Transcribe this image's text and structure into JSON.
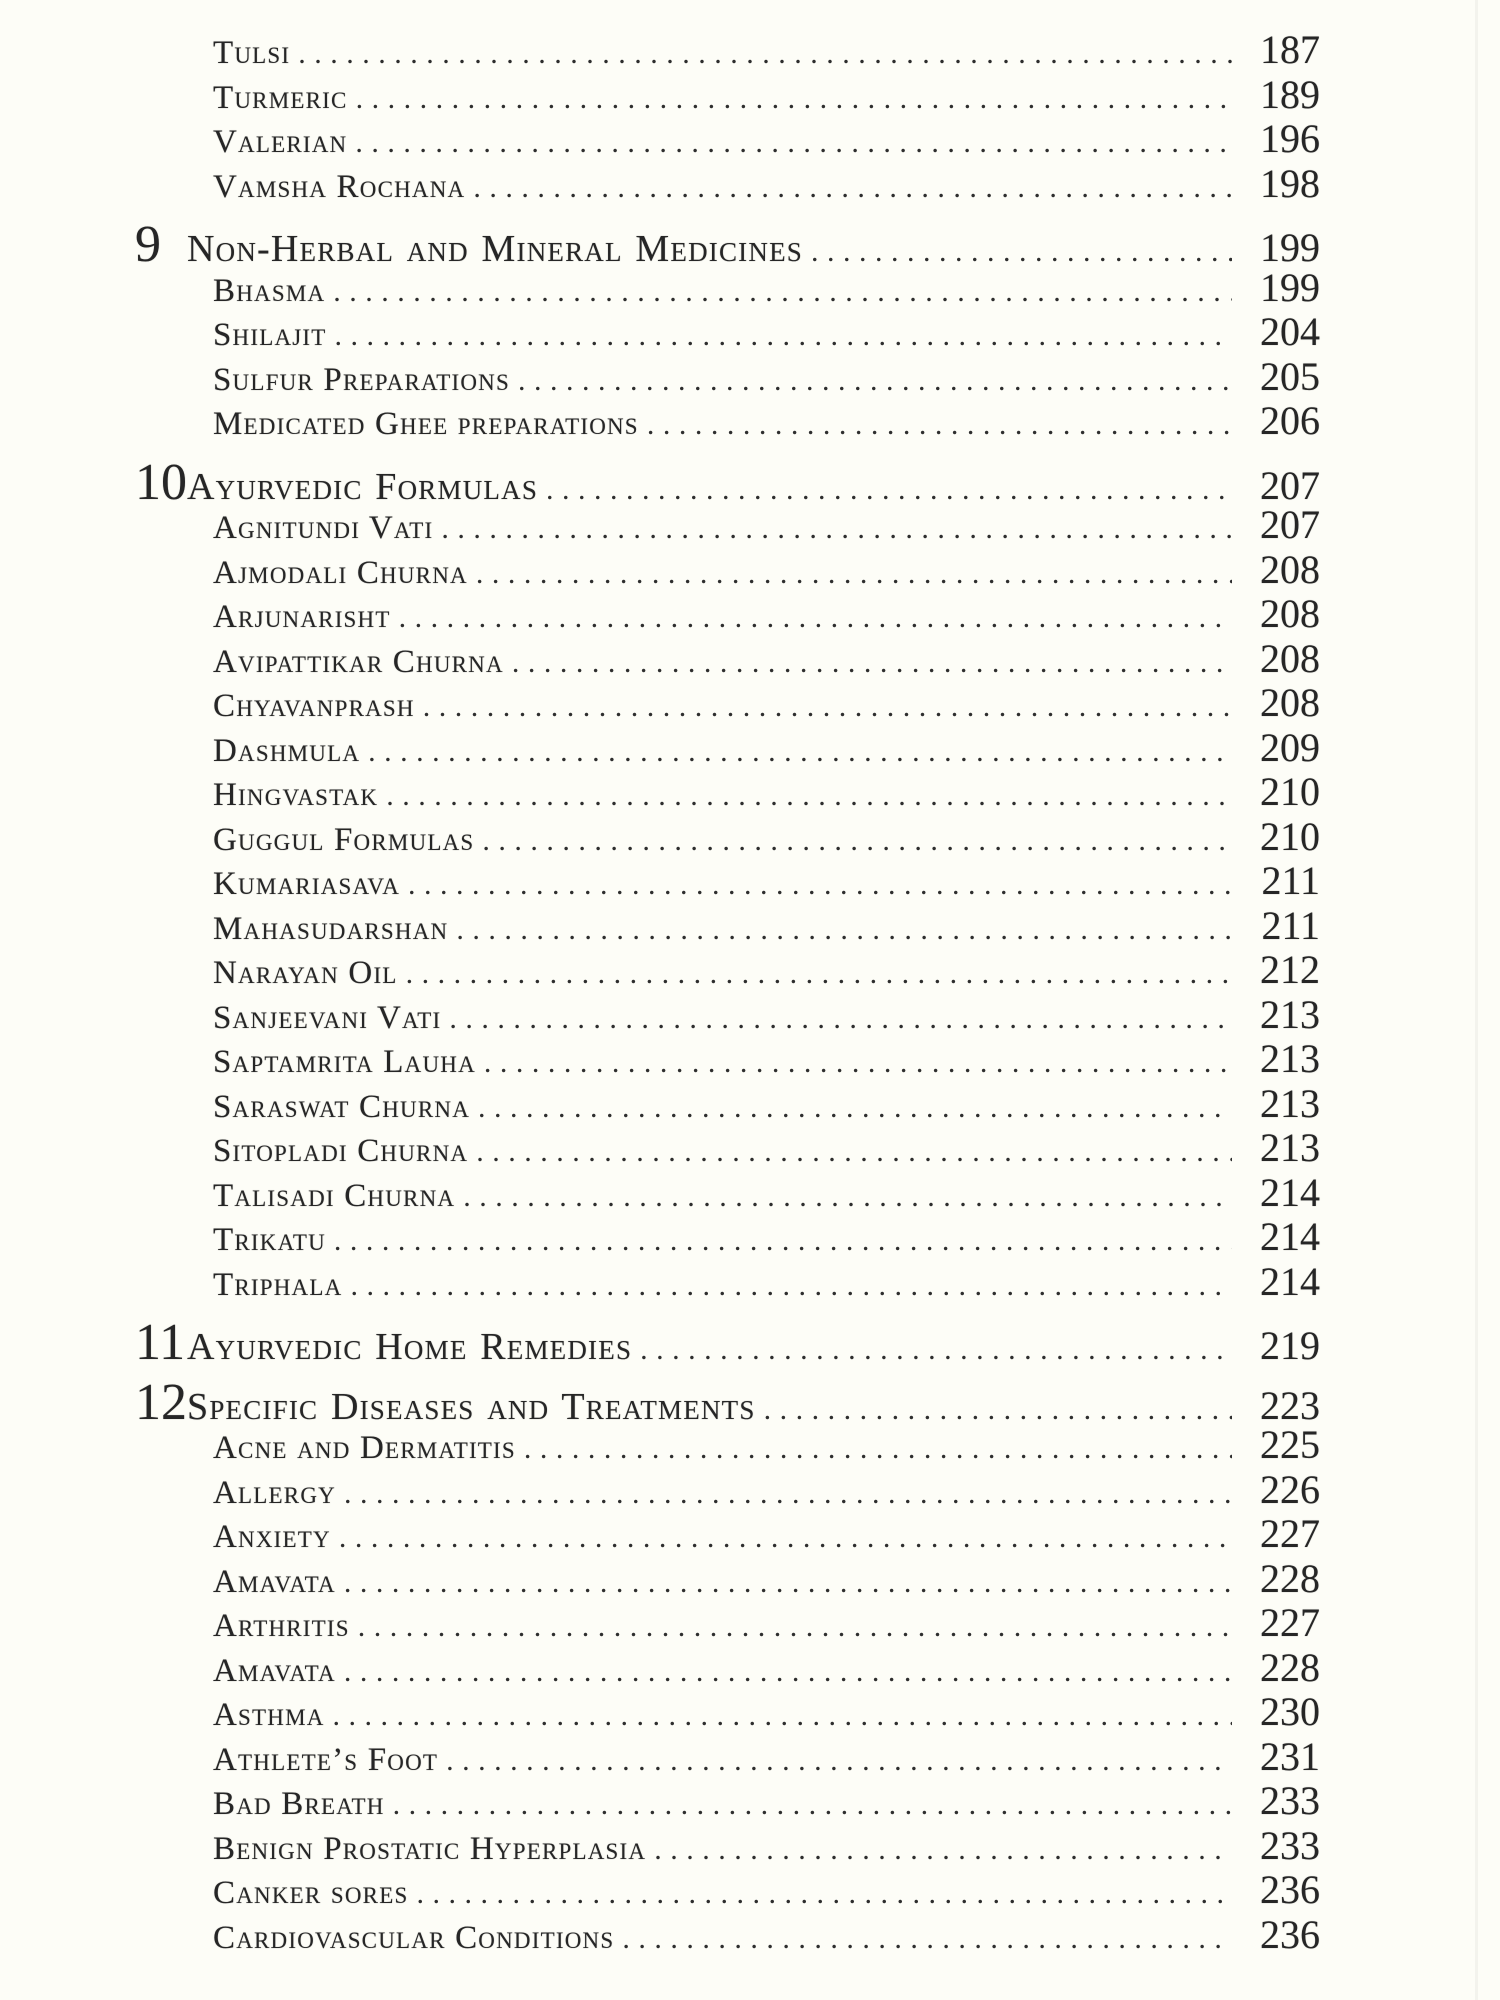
{
  "colors": {
    "background": "#fdfdf7",
    "text": "#262626"
  },
  "toc": {
    "entries": [
      {
        "type": "sub",
        "label": "Tulsi",
        "page": "187"
      },
      {
        "type": "sub",
        "label": "Turmeric",
        "page": "189"
      },
      {
        "type": "sub",
        "label": "Valerian",
        "page": "196"
      },
      {
        "type": "sub",
        "label": "Vamsha Rochana",
        "page": "198"
      },
      {
        "type": "chapter",
        "number": "9",
        "label": "Non-Herbal and Mineral Medicines",
        "page": "199"
      },
      {
        "type": "sub",
        "label": "Bhasma",
        "page": "199"
      },
      {
        "type": "sub",
        "label": "Shilajit",
        "page": "204"
      },
      {
        "type": "sub",
        "label": "Sulfur Preparations",
        "page": "205"
      },
      {
        "type": "sub",
        "label": "Medicated Ghee preparations",
        "page": "206"
      },
      {
        "type": "chapter",
        "number": "10",
        "label": "Ayurvedic Formulas",
        "page": "207"
      },
      {
        "type": "sub",
        "label": "Agnitundi Vati",
        "page": "207"
      },
      {
        "type": "sub",
        "label": "Ajmodali Churna",
        "page": "208"
      },
      {
        "type": "sub",
        "label": "Arjunarisht",
        "page": "208"
      },
      {
        "type": "sub",
        "label": "Avipattikar Churna",
        "page": "208"
      },
      {
        "type": "sub",
        "label": "Chyavanprash",
        "page": "208"
      },
      {
        "type": "sub",
        "label": "Dashmula",
        "page": "209"
      },
      {
        "type": "sub",
        "label": "Hingvastak",
        "page": "210"
      },
      {
        "type": "sub",
        "label": "Guggul Formulas",
        "page": "210"
      },
      {
        "type": "sub",
        "label": "Kumariasava",
        "page": "211"
      },
      {
        "type": "sub",
        "label": "Mahasudarshan",
        "page": "211"
      },
      {
        "type": "sub",
        "label": "Narayan Oil",
        "page": "212"
      },
      {
        "type": "sub",
        "label": "Sanjeevani Vati",
        "page": "213"
      },
      {
        "type": "sub",
        "label": "Saptamrita Lauha",
        "page": "213"
      },
      {
        "type": "sub",
        "label": "Saraswat Churna",
        "page": "213"
      },
      {
        "type": "sub",
        "label": "Sitopladi Churna",
        "page": "213"
      },
      {
        "type": "sub",
        "label": "Talisadi Churna",
        "page": "214"
      },
      {
        "type": "sub",
        "label": "Trikatu",
        "page": "214"
      },
      {
        "type": "sub",
        "label": "Triphala",
        "page": "214"
      },
      {
        "type": "chapter",
        "number": "11",
        "label": "Ayurvedic Home Remedies",
        "page": "219"
      },
      {
        "type": "chapter",
        "number": "12",
        "label": "Specific Diseases and Treatments",
        "page": "223"
      },
      {
        "type": "sub",
        "label": "Acne and Dermatitis",
        "page": "225"
      },
      {
        "type": "sub",
        "label": "Allergy",
        "page": "226"
      },
      {
        "type": "sub",
        "label": "Anxiety",
        "page": "227"
      },
      {
        "type": "sub",
        "label": "Amavata",
        "page": "228"
      },
      {
        "type": "sub",
        "label": "Arthritis",
        "page": "227"
      },
      {
        "type": "sub",
        "label": "Amavata",
        "page": "228"
      },
      {
        "type": "sub",
        "label": "Asthma",
        "page": "230"
      },
      {
        "type": "sub",
        "label": "Athlete’s Foot",
        "page": "231"
      },
      {
        "type": "sub",
        "label": "Bad Breath",
        "page": "233"
      },
      {
        "type": "sub",
        "label": "Benign Prostatic Hyperplasia",
        "page": "233"
      },
      {
        "type": "sub",
        "label": "Canker sores",
        "page": "236"
      },
      {
        "type": "sub",
        "label": "Cardiovascular Conditions",
        "page": "236"
      }
    ]
  }
}
